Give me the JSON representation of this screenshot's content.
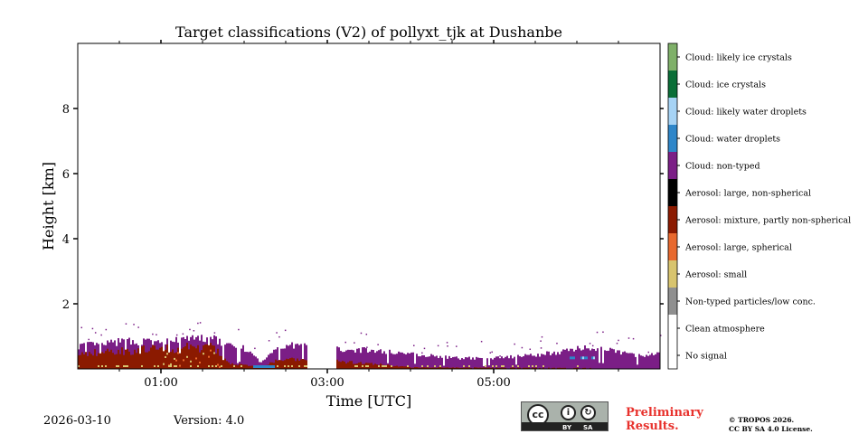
{
  "chart_data": {
    "type": "heatmap",
    "title": "Target classifications (V2) of pollyxt_tjk at Dushanbe",
    "xlabel": "Time [UTC]",
    "ylabel": "Height [km]",
    "xlim_hours": [
      0.0,
      7.0
    ],
    "ylim": [
      0,
      10
    ],
    "x_ticks": [
      {
        "value": 1.0,
        "label": "01:00"
      },
      {
        "value": 3.0,
        "label": "03:00"
      },
      {
        "value": 5.0,
        "label": "05:00"
      }
    ],
    "y_ticks": [
      {
        "value": 2,
        "label": "2"
      },
      {
        "value": 4,
        "label": "4"
      },
      {
        "value": 6,
        "label": "6"
      },
      {
        "value": 8,
        "label": "8"
      }
    ],
    "legend": [
      {
        "label": "Cloud: likely ice crystals",
        "color": "#7fb069"
      },
      {
        "label": "Cloud: ice crystals",
        "color": "#0a6e37"
      },
      {
        "label": "Cloud: likely water droplets",
        "color": "#a6d3f5"
      },
      {
        "label": "Cloud: water droplets",
        "color": "#2e86c9"
      },
      {
        "label": "Cloud: non-typed",
        "color": "#7b1e86"
      },
      {
        "label": "Aerosol: large, non-spherical",
        "color": "#000000"
      },
      {
        "label": "Aerosol: mixture, partly non-spherical",
        "color": "#8b1a00"
      },
      {
        "label": "Aerosol: large, spherical",
        "color": "#e8692e"
      },
      {
        "label": "Aerosol: small",
        "color": "#d8c46e"
      },
      {
        "label": "Non-typed particles/low conc.",
        "color": "#8f8f8f"
      },
      {
        "label": "Clean atmosphere",
        "color": "#ffffff"
      },
      {
        "label": "No signal",
        "color": "#ffffff"
      }
    ],
    "layer_profile": {
      "description_units": "time in hours UTC, heights in km",
      "gap_hours": [
        2.75,
        3.1
      ],
      "cloud_top_km": [
        [
          0.0,
          0.75
        ],
        [
          0.3,
          0.8
        ],
        [
          0.6,
          0.9
        ],
        [
          1.0,
          0.85
        ],
        [
          1.3,
          0.95
        ],
        [
          1.6,
          1.0
        ],
        [
          1.75,
          0.8
        ],
        [
          2.0,
          0.65
        ],
        [
          2.2,
          0.2
        ],
        [
          2.4,
          0.75
        ],
        [
          2.7,
          0.75
        ],
        [
          3.1,
          0.65
        ],
        [
          3.5,
          0.6
        ],
        [
          4.0,
          0.5
        ],
        [
          4.5,
          0.35
        ],
        [
          5.0,
          0.35
        ],
        [
          5.5,
          0.45
        ],
        [
          5.9,
          0.6
        ],
        [
          6.1,
          0.7
        ],
        [
          6.5,
          0.55
        ],
        [
          6.8,
          0.4
        ],
        [
          7.0,
          0.5
        ]
      ],
      "aerosol_top_km": [
        [
          0.0,
          0.5
        ],
        [
          0.5,
          0.6
        ],
        [
          1.0,
          0.65
        ],
        [
          1.3,
          0.7
        ],
        [
          1.6,
          0.75
        ],
        [
          1.8,
          0.2
        ],
        [
          2.2,
          0.05
        ],
        [
          2.4,
          0.3
        ],
        [
          2.7,
          0.3
        ],
        [
          3.1,
          0.25
        ],
        [
          3.6,
          0.15
        ],
        [
          4.0,
          0.05
        ],
        [
          7.0,
          0.02
        ]
      ]
    }
  },
  "footer": {
    "date": "2026-03-10",
    "version": "Version: 4.0",
    "license_badge": {
      "cc": "cc",
      "by": "BY",
      "sa": "SA"
    },
    "preliminary": "Preliminary\nResults.",
    "copyright": "© TROPOS 2026.\nCC BY SA 4.0 License."
  },
  "colors": {
    "cloud_nontyped": "#7b1e86",
    "aerosol_mixture": "#8b1a00",
    "aerosol_large_spherical": "#e8692e",
    "aerosol_small": "#d8c46e",
    "water_droplets": "#2e86c9",
    "likely_water": "#a6d3f5",
    "prelim_red": "#e8322d"
  }
}
